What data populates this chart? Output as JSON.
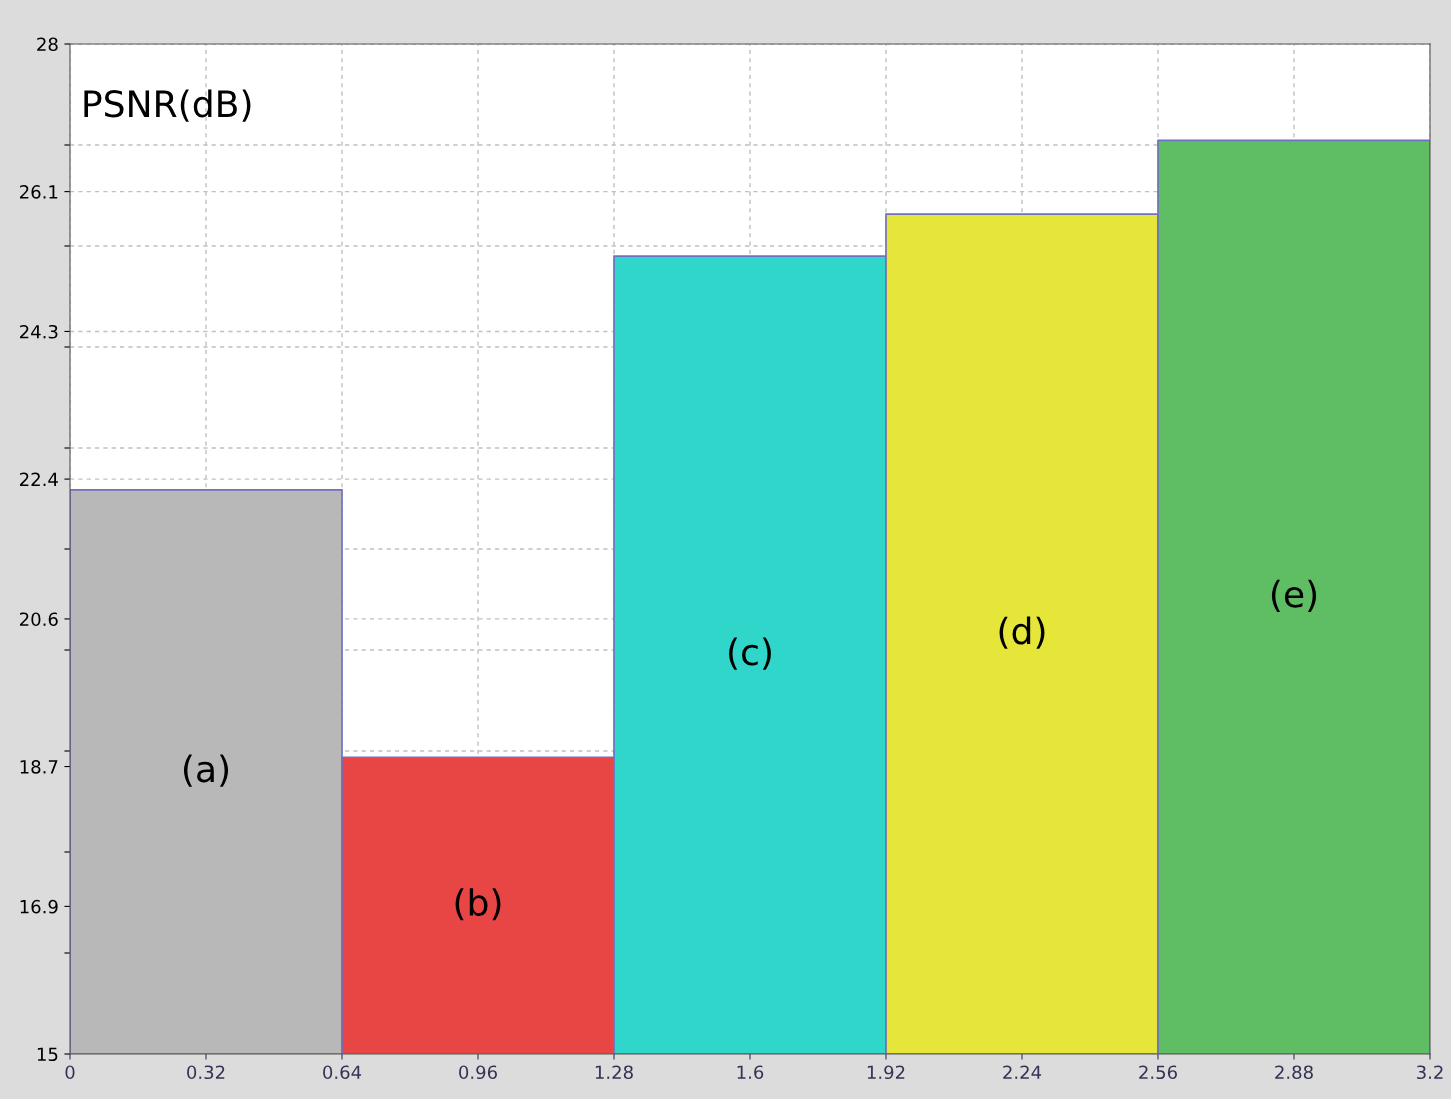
{
  "chart_data": {
    "type": "histogram",
    "ylabel": "PSNR(dB)",
    "bins": [
      0,
      0.64,
      1.28,
      1.92,
      2.56,
      3.2
    ],
    "values": [
      22.26,
      18.82,
      25.27,
      25.81,
      26.76
    ],
    "colors": [
      "#b8b8b8",
      "#e84545",
      "#31d6cb",
      "#e6e63a",
      "#5fbd64"
    ],
    "xlim": [
      0,
      3.2
    ],
    "ylim": [
      15,
      28
    ],
    "xticks": [
      0,
      0.32,
      0.64,
      0.96,
      1.28,
      1.6,
      1.92,
      2.24,
      2.56,
      2.88,
      3.2
    ],
    "yticks": [
      15,
      {
        "value": 16.3,
        "label": null
      },
      16.9,
      {
        "value": 17.6,
        "label": null
      },
      18.7,
      {
        "value": 18.9,
        "label": null
      },
      {
        "value": 20.2,
        "label": null
      },
      20.6,
      {
        "value": 21.5,
        "label": null
      },
      22.4,
      {
        "value": 22.8,
        "label": null
      },
      {
        "value": 24.1,
        "label": null
      },
      24.3,
      {
        "value": 25.4,
        "label": null
      },
      26.1,
      {
        "value": 26.7,
        "label": null
      },
      28
    ],
    "grid": true,
    "annotations": [
      "(a)",
      "(b)",
      "(c)",
      "(d)",
      "(e)"
    ]
  }
}
